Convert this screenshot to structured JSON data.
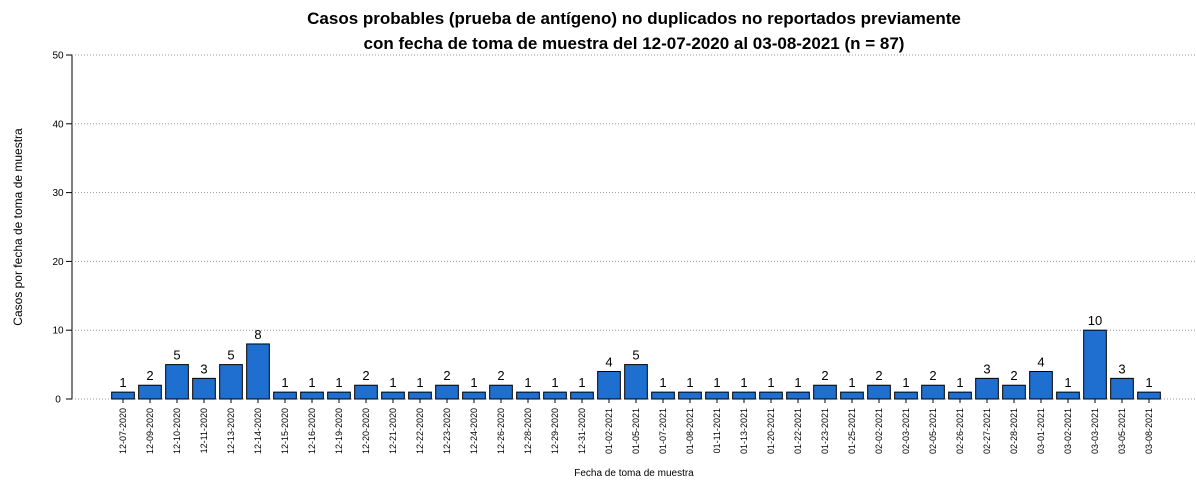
{
  "chart_data": {
    "type": "bar",
    "title": [
      "Casos probables (prueba de antígeno) no duplicados no reportados previamente",
      "con fecha de toma de muestra del 12-07-2020 al 03-08-2021 (n = 87)"
    ],
    "x_label": "Fecha de toma de muestra",
    "y_label": "Casos por fecha de toma de muestra",
    "categories": [
      "12-07-2020",
      "12-09-2020",
      "12-10-2020",
      "12-11-2020",
      "12-13-2020",
      "12-14-2020",
      "12-15-2020",
      "12-16-2020",
      "12-19-2020",
      "12-20-2020",
      "12-21-2020",
      "12-22-2020",
      "12-23-2020",
      "12-24-2020",
      "12-26-2020",
      "12-28-2020",
      "12-29-2020",
      "12-31-2020",
      "01-02-2021",
      "01-05-2021",
      "01-07-2021",
      "01-08-2021",
      "01-11-2021",
      "01-13-2021",
      "01-20-2021",
      "01-22-2021",
      "01-23-2021",
      "01-25-2021",
      "02-02-2021",
      "02-03-2021",
      "02-05-2021",
      "02-26-2021",
      "02-27-2021",
      "02-28-2021",
      "03-01-2021",
      "03-02-2021",
      "03-03-2021",
      "03-05-2021",
      "03-08-2021"
    ],
    "values": [
      1,
      2,
      5,
      3,
      5,
      8,
      1,
      1,
      1,
      2,
      1,
      1,
      2,
      1,
      2,
      1,
      1,
      1,
      4,
      5,
      1,
      1,
      1,
      1,
      1,
      1,
      2,
      1,
      2,
      1,
      2,
      1,
      3,
      2,
      4,
      1,
      10,
      3,
      1
    ],
    "color": "#1f6fd0",
    "ylim": [
      0,
      50
    ],
    "yticks": [
      0,
      10,
      20,
      30,
      40,
      50
    ],
    "grid": true
  }
}
